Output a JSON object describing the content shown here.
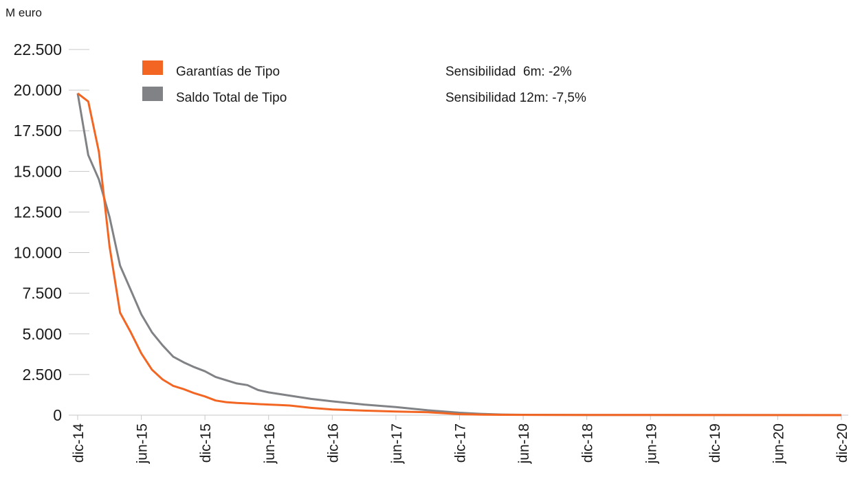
{
  "chart_data": {
    "type": "line",
    "ylabel": "M euro",
    "xlabel": "",
    "title": "",
    "ylim": [
      0,
      22500
    ],
    "yticks": [
      0,
      2500,
      5000,
      7500,
      10000,
      12500,
      15000,
      17500,
      20000,
      22500
    ],
    "ytick_labels": [
      "0",
      "2.500",
      "5.000",
      "7.500",
      "10.000",
      "12.500",
      "15.000",
      "17.500",
      "20.000",
      "22.500"
    ],
    "x_tick_labels": [
      "dic-14",
      "jun-15",
      "dic-15",
      "jun-16",
      "dic-16",
      "jun-17",
      "dic-17",
      "jun-18",
      "dic-18",
      "jun-19",
      "dic-19",
      "jun-20",
      "dic-20"
    ],
    "x_unit": "months since dic-14",
    "xlim": [
      0,
      72
    ],
    "grid": false,
    "legend_position": "top-left",
    "series": [
      {
        "name": "Garantías de Tipo",
        "color": "#f26522",
        "x": [
          0,
          1,
          2,
          3,
          4,
          5,
          6,
          7,
          8,
          9,
          10,
          11,
          12,
          13,
          14,
          15,
          16,
          17,
          18,
          19,
          20,
          22,
          24,
          27,
          30,
          33,
          36,
          38,
          40,
          42,
          48,
          54,
          60,
          66,
          72
        ],
        "y": [
          19800,
          19300,
          16200,
          10400,
          6300,
          5100,
          3800,
          2800,
          2200,
          1800,
          1600,
          1350,
          1150,
          900,
          800,
          750,
          720,
          680,
          650,
          620,
          590,
          450,
          350,
          280,
          220,
          180,
          60,
          30,
          20,
          15,
          10,
          8,
          5,
          3,
          2
        ]
      },
      {
        "name": "Saldo Total de Tipo",
        "color": "#808285",
        "x": [
          0,
          1,
          2,
          3,
          4,
          5,
          6,
          7,
          8,
          9,
          10,
          11,
          12,
          13,
          14,
          15,
          16,
          17,
          18,
          20,
          22,
          24,
          27,
          30,
          33,
          36,
          38,
          40,
          42,
          48,
          54,
          60,
          66,
          72
        ],
        "y": [
          19800,
          16000,
          14500,
          12200,
          9200,
          7700,
          6200,
          5100,
          4300,
          3600,
          3250,
          2950,
          2700,
          2350,
          2150,
          1950,
          1850,
          1550,
          1400,
          1200,
          1000,
          850,
          650,
          500,
          300,
          150,
          80,
          40,
          20,
          12,
          10,
          8,
          5,
          3
        ]
      }
    ],
    "annotations": [
      "Sensibilidad  6m: -2%",
      "Sensibilidad 12m: -7,5%"
    ]
  }
}
